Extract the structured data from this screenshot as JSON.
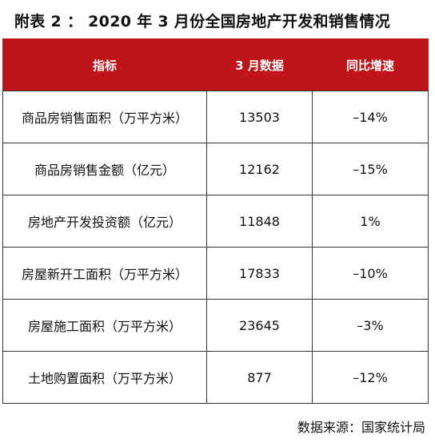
{
  "title": "附表 2 ： 2020 年 3 月份全国房地产开发和销售情况",
  "table": {
    "headers": [
      "指标",
      "3 月数据",
      "同比增速"
    ],
    "rows": [
      [
        "商品房销售面积（万平方米）",
        "13503",
        "–14%"
      ],
      [
        "商品房销售金额（亿元）",
        "12162",
        "–15%"
      ],
      [
        "房地产开发投资额（亿元）",
        "11848",
        "1%"
      ],
      [
        "房屋新开工面积（万平方米）",
        "17833",
        "–10%"
      ],
      [
        "房屋施工面积（万平方米）",
        "23645",
        "–3%"
      ],
      [
        "土地购置面积（万平方米）",
        "877",
        "–12%"
      ]
    ]
  },
  "source": "数据来源：国家统计局",
  "colors": {
    "header_bg": "#c0141b",
    "header_text": "#ffffff",
    "border": "#333333"
  }
}
